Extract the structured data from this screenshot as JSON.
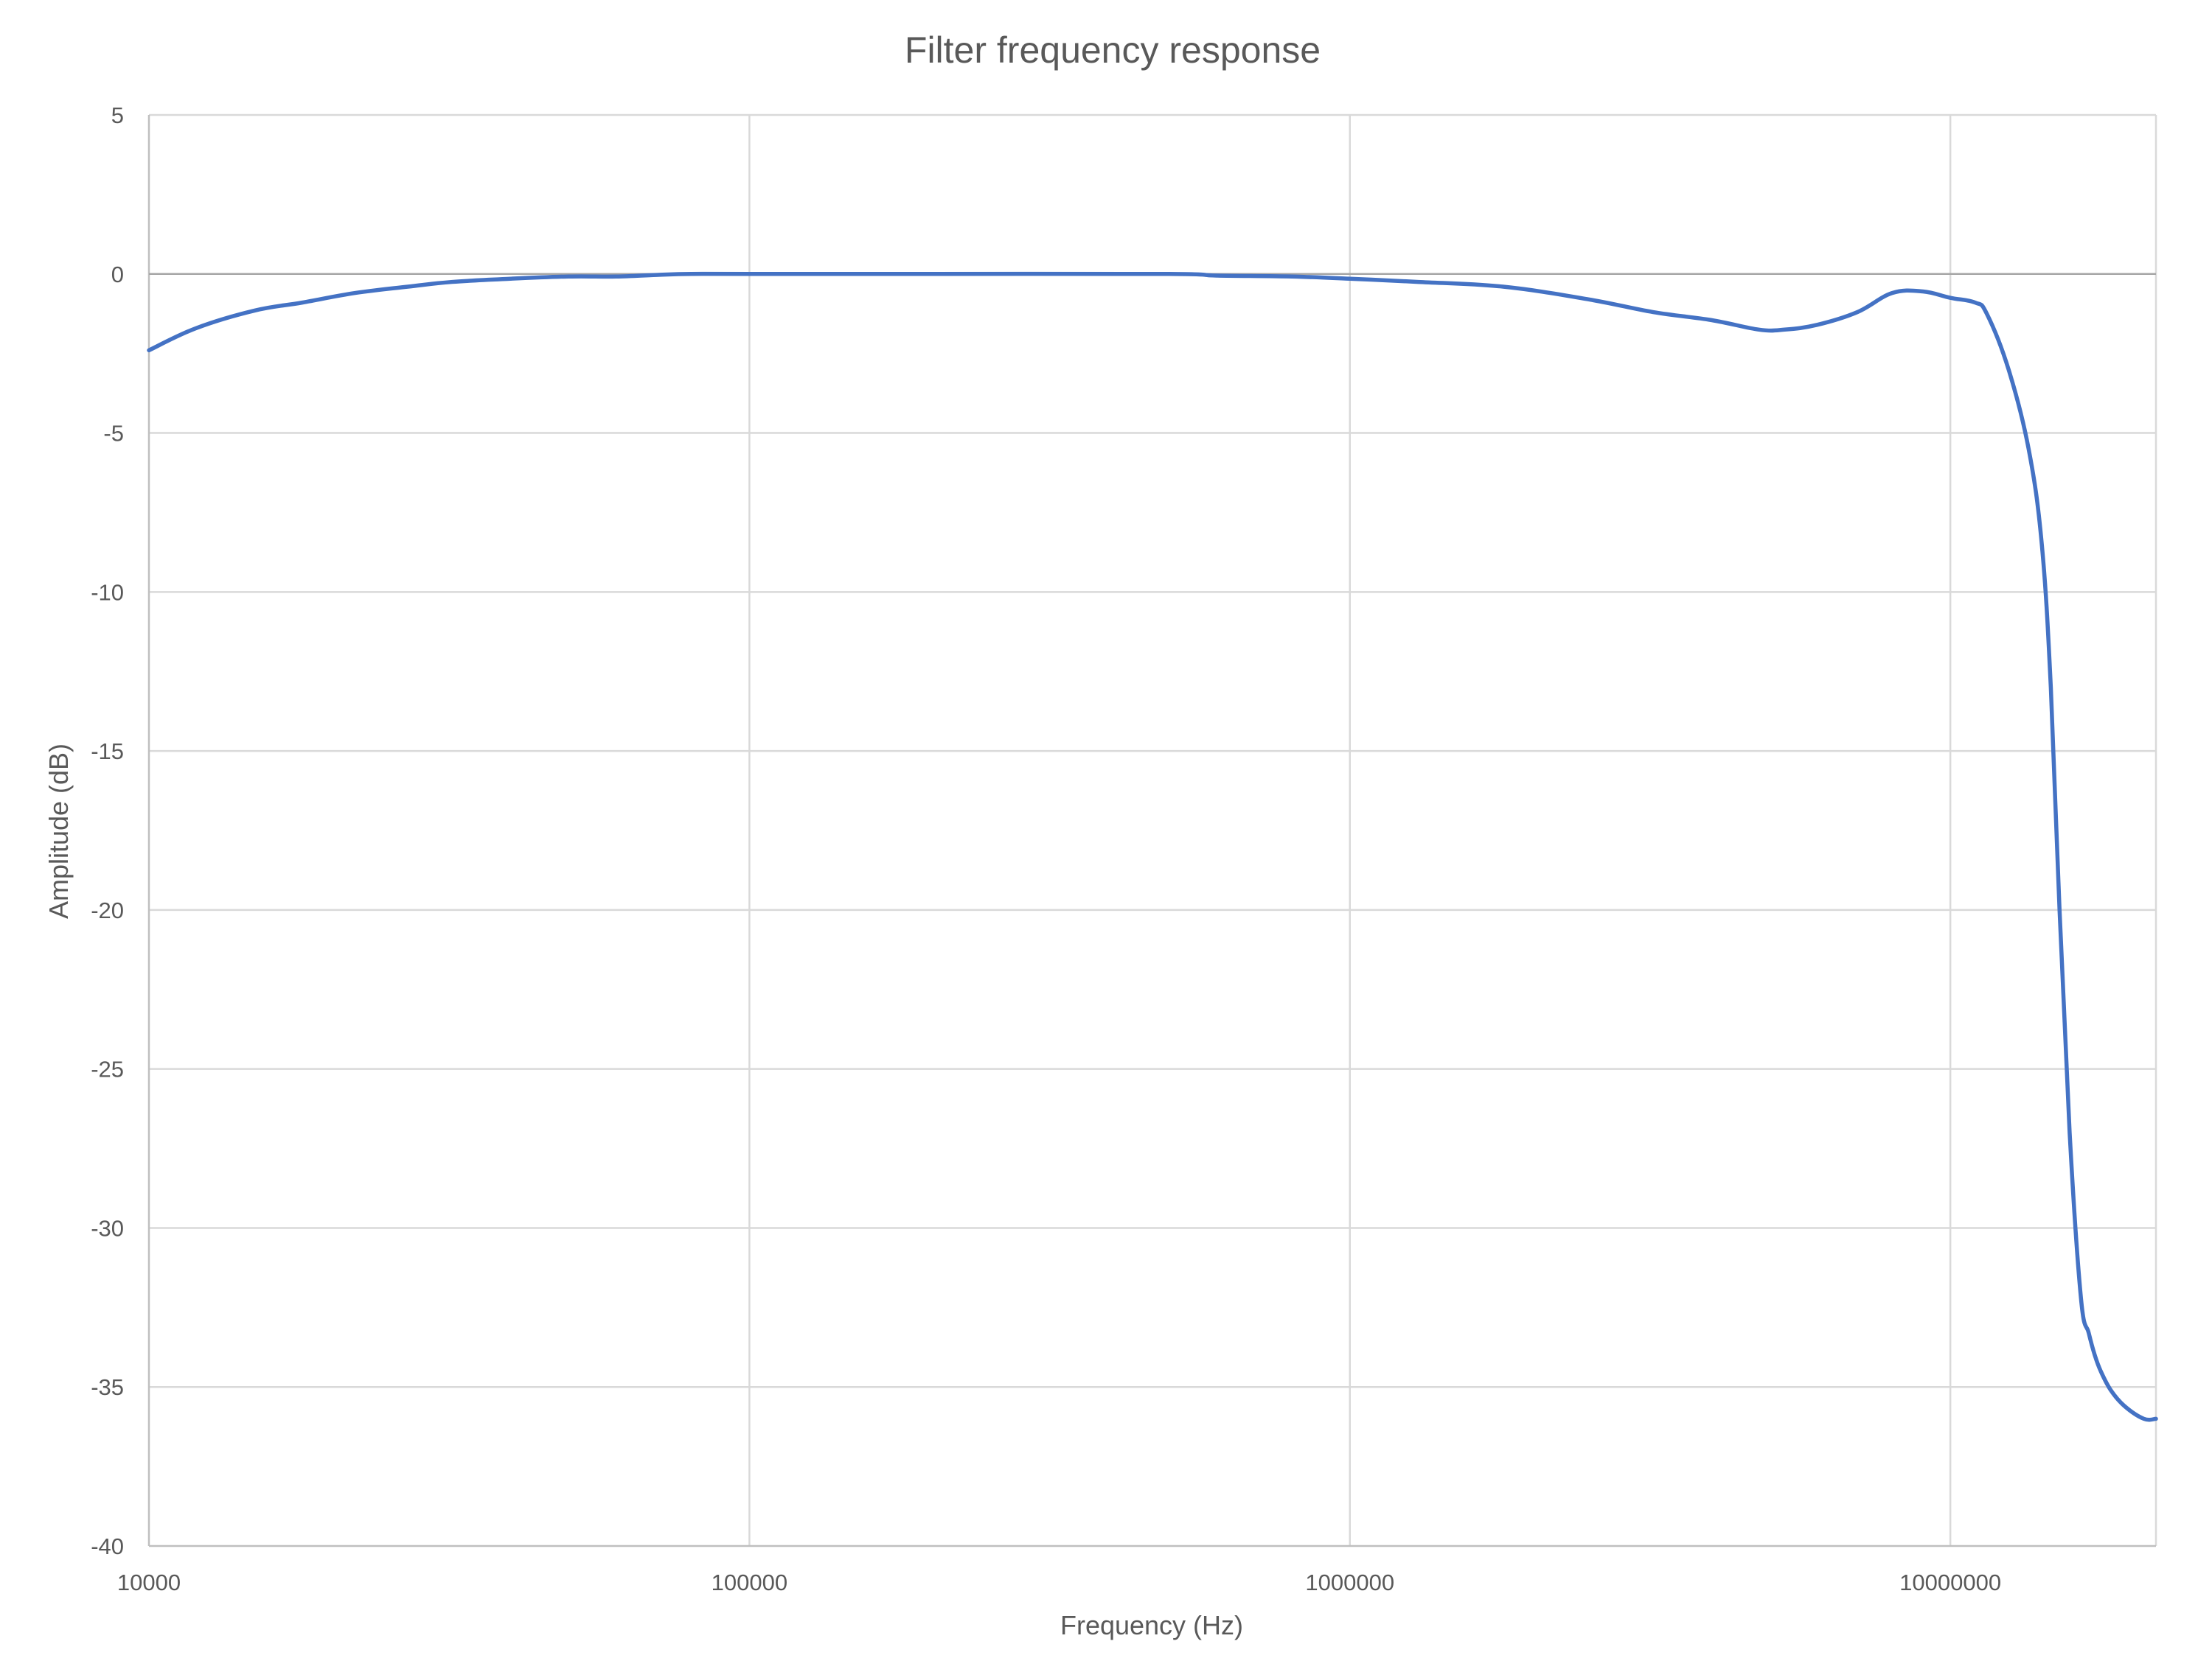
{
  "chart_data": {
    "type": "line",
    "title": "Filter frequency response",
    "xlabel": "Frequency (Hz)",
    "ylabel": "Amplitude (dB)",
    "x_scale": "log",
    "xlim": [
      10000,
      22000000
    ],
    "ylim": [
      -40,
      5
    ],
    "grid": true,
    "legend": "none",
    "x_ticks": [
      10000,
      100000,
      1000000,
      10000000
    ],
    "x_tick_labels": [
      "10000",
      "100000",
      "1000000",
      "10000000"
    ],
    "y_ticks": [
      5,
      0,
      -5,
      -10,
      -15,
      -20,
      -25,
      -30,
      -35,
      -40
    ],
    "y_tick_labels": [
      "5",
      "0",
      "-5",
      "-10",
      "-15",
      "-20",
      "-25",
      "-30",
      "-35",
      "-40"
    ],
    "colors": {
      "series": "#4472C4",
      "grid": "#D9D9D9",
      "text": "#595959"
    },
    "series": [
      {
        "x": [
          10000,
          12000,
          15000,
          18000,
          22000,
          27000,
          32000,
          40000,
          50000,
          60000,
          70000,
          80000,
          100000,
          200000,
          500000,
          600000,
          800000,
          1000000,
          1300000,
          1800000,
          2500000,
          3200000,
          4000000,
          4800000,
          5300000,
          6000000,
          7000000,
          8000000,
          9000000,
          10000000,
          11000000,
          11500000,
          12500000,
          13500000,
          14200000,
          14700000,
          15200000,
          15800000,
          16500000,
          17000000,
          17400000,
          17800000,
          18500000,
          19500000,
          21000000,
          22000000
        ],
        "y": [
          -2.4,
          -1.7,
          -1.15,
          -0.9,
          -0.6,
          -0.4,
          -0.25,
          -0.15,
          -0.08,
          -0.08,
          -0.03,
          0,
          0,
          0,
          0,
          -0.05,
          -0.08,
          -0.15,
          -0.25,
          -0.4,
          -0.8,
          -1.2,
          -1.45,
          -1.75,
          -1.75,
          -1.6,
          -1.2,
          -0.6,
          -0.55,
          -0.75,
          -0.9,
          -1.25,
          -3,
          -5.5,
          -8.5,
          -13,
          -20,
          -27,
          -32.2,
          -33.3,
          -34,
          -34.5,
          -35.1,
          -35.6,
          -36,
          -36
        ]
      }
    ]
  }
}
